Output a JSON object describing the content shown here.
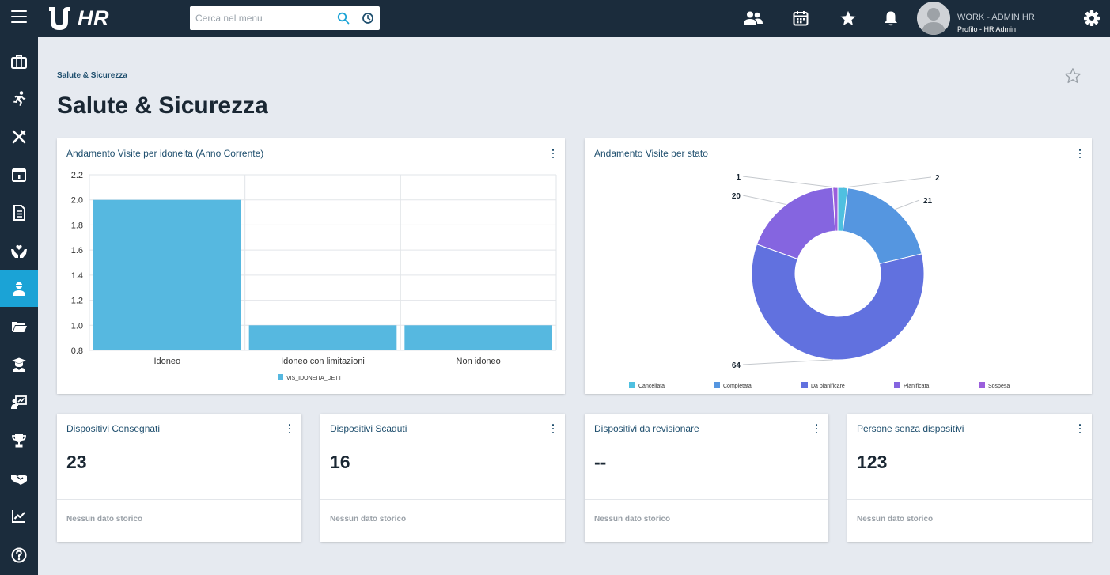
{
  "header": {
    "app_name": "HR",
    "search": {
      "placeholder": "Cerca nel menu",
      "value": ""
    },
    "icons": [
      "users-icon",
      "calendar-icon",
      "star-icon",
      "bell-icon"
    ],
    "user": {
      "name": "WORK - ADMIN HR",
      "role": "Profilo - HR Admin"
    },
    "settings_icon": "gear-icon"
  },
  "sidebar": {
    "items": [
      {
        "icon": "briefcase-icon",
        "active": false
      },
      {
        "icon": "running-person-icon",
        "active": false
      },
      {
        "icon": "fork-knife-icon",
        "active": false
      },
      {
        "icon": "calendar-icon",
        "active": false
      },
      {
        "icon": "document-icon",
        "active": false
      },
      {
        "icon": "hands-heart-icon",
        "active": false
      },
      {
        "icon": "user-safety-icon",
        "active": true
      },
      {
        "icon": "folder-open-icon",
        "active": false
      },
      {
        "icon": "graduate-icon",
        "active": false
      },
      {
        "icon": "presentation-icon",
        "active": false
      },
      {
        "icon": "trophy-icon",
        "active": false
      },
      {
        "icon": "handshake-icon",
        "active": false
      },
      {
        "icon": "chart-line-icon",
        "active": false
      },
      {
        "icon": "help-icon",
        "active": false
      }
    ],
    "active_color": "#1ba3d6"
  },
  "page": {
    "breadcrumb": "Salute & Sicurezza",
    "title": "Salute & Sicurezza"
  },
  "cards": {
    "bar_chart": {
      "title": "Andamento Visite per idoneita (Anno Corrente)"
    },
    "donut_chart": {
      "title": "Andamento Visite per stato"
    },
    "kpis": [
      {
        "title": "Dispositivi Consegnati",
        "value": "23",
        "footer": "Nessun dato storico"
      },
      {
        "title": "Dispositivi Scaduti",
        "value": "16",
        "footer": "Nessun dato storico"
      },
      {
        "title": "Dispositivi da revisionare",
        "value": "--",
        "footer": "Nessun dato storico"
      },
      {
        "title": "Persone senza dispositivi",
        "value": "123",
        "footer": "Nessun dato storico"
      }
    ]
  },
  "chart_data": [
    {
      "type": "bar",
      "title": "Andamento Visite per idoneita (Anno Corrente)",
      "categories": [
        "Idoneo",
        "Idoneo con limitazioni",
        "Non idoneo"
      ],
      "series": [
        {
          "name": "VIS_IDONEITA_DETT",
          "values": [
            2,
            1,
            1
          ],
          "color": "#56b8e0"
        }
      ],
      "ylim": [
        0.8,
        2.2
      ],
      "yticks": [
        "2.2",
        "2.0",
        "1.8",
        "1.6",
        "1.4",
        "1.2",
        "1.0",
        "0.8"
      ],
      "grid": true,
      "legend": "bottom"
    },
    {
      "type": "pie",
      "title": "Andamento Visite per stato",
      "donut": true,
      "slices": [
        {
          "label": "Cancellata",
          "value": 2,
          "color": "#4fc0e0"
        },
        {
          "label": "Completata",
          "value": 21,
          "color": "#5596e0"
        },
        {
          "label": "Da pianificare",
          "value": 64,
          "color": "#6171df"
        },
        {
          "label": "Pianificata",
          "value": 20,
          "color": "#8565e0"
        },
        {
          "label": "Sospesa",
          "value": 1,
          "color": "#9b5fdc"
        }
      ],
      "legend": "bottom"
    }
  ]
}
